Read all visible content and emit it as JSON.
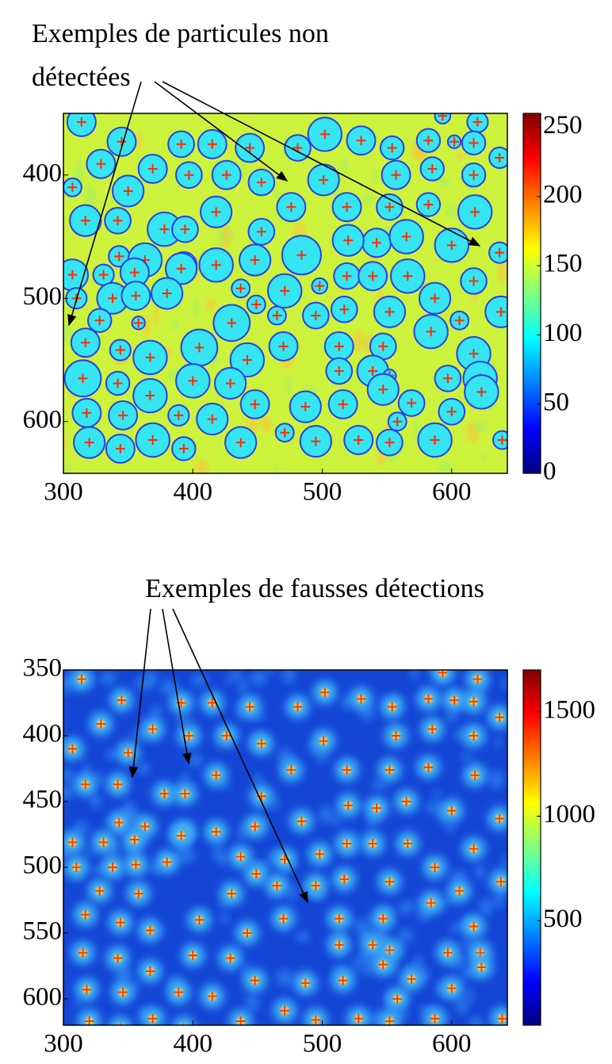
{
  "chart_data": [
    {
      "type": "image",
      "annotation": [
        "Exemples de particules non",
        "détectées"
      ],
      "xlim": [
        300,
        643
      ],
      "ylim": [
        350,
        642
      ],
      "yreverse": true,
      "xticks": [
        300,
        400,
        500,
        600
      ],
      "yticks": [
        400,
        500,
        600
      ],
      "clim": [
        0,
        260
      ],
      "cticks": [
        0,
        50,
        100,
        150,
        200,
        250
      ],
      "colormap": "jet",
      "background": "#cdf23c",
      "circles": true,
      "circle_fill": "#35e6f2",
      "circle_color": "#2a3ee6",
      "marker_color": "#ff2a00",
      "particles": {
        "x": [
          314,
          502,
          530,
          554,
          582,
          620,
          593,
          345,
          391,
          415,
          444,
          481,
          602,
          617,
          637,
          329,
          369,
          397,
          426,
          453,
          501,
          557,
          585,
          617,
          307,
          350,
          418,
          476,
          519,
          552,
          582,
          618,
          317,
          342,
          378,
          394,
          453,
          542,
          520,
          565,
          600,
          637,
          343,
          363,
          393,
          418,
          448,
          484,
          307,
          331,
          355,
          391,
          437,
          498,
          519,
          539,
          566,
          617,
          310,
          338,
          356,
          380,
          449,
          471,
          465,
          495,
          517,
          552,
          587,
          328,
          358,
          430,
          606,
          638,
          317,
          344,
          367,
          405,
          442,
          470,
          513,
          547,
          584,
          617,
          315,
          342,
          400,
          429,
          513,
          539,
          552,
          597,
          622,
          367,
          415,
          448,
          487,
          516,
          547,
          569,
          600,
          623,
          318,
          346,
          389,
          320,
          344,
          369,
          393,
          437,
          471,
          495,
          528,
          552,
          587,
          639,
          558
        ],
        "y": [
          357,
          367,
          372,
          378,
          372,
          357,
          352,
          373,
          375,
          375,
          378,
          378,
          373,
          374,
          386,
          391,
          395,
          400,
          400,
          406,
          404,
          400,
          395,
          400,
          410,
          413,
          430,
          426,
          426,
          426,
          424,
          430,
          437,
          437,
          444,
          444,
          446,
          455,
          453,
          450,
          457,
          463,
          466,
          469,
          473,
          473,
          469,
          465,
          481,
          481,
          479,
          476,
          492,
          490,
          482,
          482,
          482,
          486,
          500,
          500,
          498,
          496,
          505,
          494,
          514,
          514,
          509,
          511,
          500,
          518,
          520,
          520,
          518,
          511,
          536,
          542,
          548,
          540,
          550,
          539,
          539,
          539,
          527,
          545,
          565,
          569,
          567,
          569,
          559,
          559,
          563,
          565,
          565,
          579,
          598,
          586,
          588,
          586,
          574,
          585,
          592,
          576,
          593,
          595,
          595,
          617,
          622,
          615,
          622,
          617,
          609,
          616,
          615,
          617,
          615,
          615,
          600
        ],
        "r": [
          11,
          13,
          11,
          9,
          9,
          8,
          6,
          11,
          10,
          11,
          11,
          10,
          5,
          9,
          8,
          11,
          11,
          10,
          11,
          10,
          12,
          11,
          9,
          9,
          7,
          12,
          12,
          11,
          11,
          10,
          9,
          13,
          12,
          10,
          13,
          10,
          10,
          11,
          12,
          13,
          13,
          8,
          8,
          13,
          10,
          13,
          12,
          15,
          12,
          8,
          11,
          12,
          7,
          6,
          10,
          11,
          13,
          10,
          8,
          12,
          11,
          12,
          7,
          13,
          7,
          10,
          10,
          12,
          12,
          9,
          5,
          14,
          7,
          12,
          11,
          8,
          13,
          14,
          13,
          11,
          11,
          10,
          13,
          13,
          14,
          9,
          13,
          12,
          10,
          12,
          5,
          10,
          13,
          13,
          12,
          11,
          12,
          11,
          12,
          10,
          10,
          13,
          11,
          11,
          8,
          12,
          11,
          13,
          9,
          12,
          7,
          12,
          11,
          10,
          13,
          7,
          7
        ]
      }
    },
    {
      "type": "image",
      "annotation": "Exemples de fausses détections",
      "xlim": [
        300,
        643
      ],
      "ylim": [
        350,
        620
      ],
      "yreverse": true,
      "xticks": [
        300,
        400,
        500,
        600
      ],
      "yticks": [
        350,
        400,
        450,
        500,
        550,
        600
      ],
      "clim": [
        0,
        1700
      ],
      "cticks": [
        500,
        1000,
        1500
      ],
      "colormap": "jet",
      "background": "#1446d6",
      "circles": false,
      "blob_color": "#3aaaf8",
      "marker_color": "#ff3a00"
    }
  ]
}
